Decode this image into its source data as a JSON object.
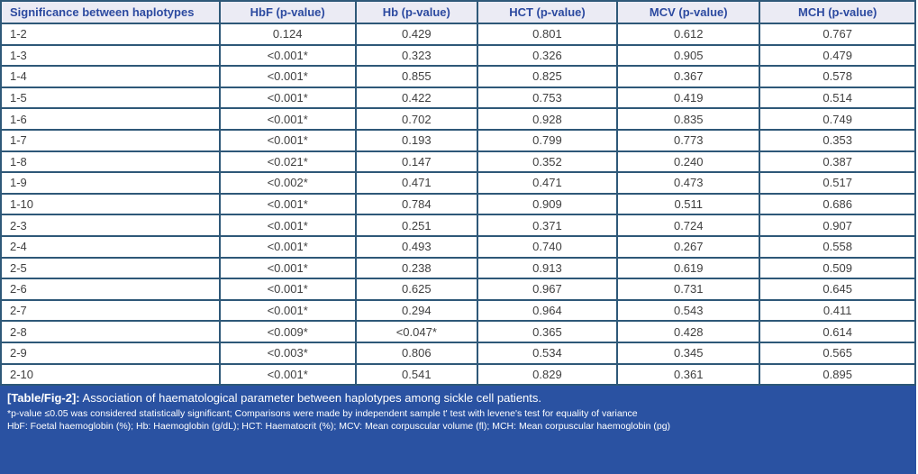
{
  "table": {
    "headers": [
      "Significance between haplotypes",
      "HbF (p-value)",
      "Hb (p-value)",
      "HCT (p-value)",
      "MCV (p-value)",
      "MCH (p-value)"
    ],
    "rows": [
      {
        "label": "1-2",
        "values": [
          "0.124",
          "0.429",
          "0.801",
          "0.612",
          "0.767"
        ]
      },
      {
        "label": "1-3",
        "values": [
          "<0.001*",
          "0.323",
          "0.326",
          "0.905",
          "0.479"
        ]
      },
      {
        "label": "1-4",
        "values": [
          "<0.001*",
          "0.855",
          "0.825",
          "0.367",
          "0.578"
        ]
      },
      {
        "label": "1-5",
        "values": [
          "<0.001*",
          "0.422",
          "0.753",
          "0.419",
          "0.514"
        ]
      },
      {
        "label": "1-6",
        "values": [
          "<0.001*",
          "0.702",
          "0.928",
          "0.835",
          "0.749"
        ]
      },
      {
        "label": "1-7",
        "values": [
          "<0.001*",
          "0.193",
          "0.799",
          "0.773",
          "0.353"
        ]
      },
      {
        "label": "1-8",
        "values": [
          "<0.021*",
          "0.147",
          "0.352",
          "0.240",
          "0.387"
        ]
      },
      {
        "label": "1-9",
        "values": [
          "<0.002*",
          "0.471",
          "0.471",
          "0.473",
          "0.517"
        ]
      },
      {
        "label": "1-10",
        "values": [
          "<0.001*",
          "0.784",
          "0.909",
          "0.511",
          "0.686"
        ]
      },
      {
        "label": "2-3",
        "values": [
          "<0.001*",
          "0.251",
          "0.371",
          "0.724",
          "0.907"
        ]
      },
      {
        "label": "2-4",
        "values": [
          "<0.001*",
          "0.493",
          "0.740",
          "0.267",
          "0.558"
        ]
      },
      {
        "label": "2-5",
        "values": [
          "<0.001*",
          "0.238",
          "0.913",
          "0.619",
          "0.509"
        ]
      },
      {
        "label": "2-6",
        "values": [
          "<0.001*",
          "0.625",
          "0.967",
          "0.731",
          "0.645"
        ]
      },
      {
        "label": "2-7",
        "values": [
          "<0.001*",
          "0.294",
          "0.964",
          "0.543",
          "0.411"
        ]
      },
      {
        "label": "2-8",
        "values": [
          "<0.009*",
          "<0.047*",
          "0.365",
          "0.428",
          "0.614"
        ]
      },
      {
        "label": "2-9",
        "values": [
          "<0.003*",
          "0.806",
          "0.534",
          "0.345",
          "0.565"
        ]
      },
      {
        "label": "2-10",
        "values": [
          "<0.001*",
          "0.541",
          "0.829",
          "0.361",
          "0.895"
        ]
      }
    ]
  },
  "footer": {
    "caption_label": "[Table/Fig-2]:",
    "caption_text": "Association of haematological parameter between haplotypes among sickle cell patients.",
    "note1": "*p-value ≤0.05 was considered statistically significant; Comparisons were made by independent sample t' test with levene's test for equality of variance",
    "note2": "HbF: Foetal haemoglobin (%); Hb: Haemoglobin (g/dL); HCT: Haematocrit (%); MCV: Mean corpuscular volume (fl); MCH: Mean corpuscular haemoglobin (pg)"
  },
  "colors": {
    "border": "#2e5878",
    "header_background": "#ebebf4",
    "header_text": "#2c4aa0",
    "body_text": "#404040",
    "footer_background": "#2a52a2",
    "footer_text": "#ffffff"
  },
  "chart_data": {
    "type": "table",
    "title": "[Table/Fig-2]: Association of haematological parameter between haplotypes among sickle cell patients.",
    "columns": [
      "Significance between haplotypes",
      "HbF (p-value)",
      "Hb (p-value)",
      "HCT (p-value)",
      "MCV (p-value)",
      "MCH (p-value)"
    ],
    "rows": [
      [
        "1-2",
        "0.124",
        "0.429",
        "0.801",
        "0.612",
        "0.767"
      ],
      [
        "1-3",
        "<0.001*",
        "0.323",
        "0.326",
        "0.905",
        "0.479"
      ],
      [
        "1-4",
        "<0.001*",
        "0.855",
        "0.825",
        "0.367",
        "0.578"
      ],
      [
        "1-5",
        "<0.001*",
        "0.422",
        "0.753",
        "0.419",
        "0.514"
      ],
      [
        "1-6",
        "<0.001*",
        "0.702",
        "0.928",
        "0.835",
        "0.749"
      ],
      [
        "1-7",
        "<0.001*",
        "0.193",
        "0.799",
        "0.773",
        "0.353"
      ],
      [
        "1-8",
        "<0.021*",
        "0.147",
        "0.352",
        "0.240",
        "0.387"
      ],
      [
        "1-9",
        "<0.002*",
        "0.471",
        "0.471",
        "0.473",
        "0.517"
      ],
      [
        "1-10",
        "<0.001*",
        "0.784",
        "0.909",
        "0.511",
        "0.686"
      ],
      [
        "2-3",
        "<0.001*",
        "0.251",
        "0.371",
        "0.724",
        "0.907"
      ],
      [
        "2-4",
        "<0.001*",
        "0.493",
        "0.740",
        "0.267",
        "0.558"
      ],
      [
        "2-5",
        "<0.001*",
        "0.238",
        "0.913",
        "0.619",
        "0.509"
      ],
      [
        "2-6",
        "<0.001*",
        "0.625",
        "0.967",
        "0.731",
        "0.645"
      ],
      [
        "2-7",
        "<0.001*",
        "0.294",
        "0.964",
        "0.543",
        "0.411"
      ],
      [
        "2-8",
        "<0.009*",
        "<0.047*",
        "0.365",
        "0.428",
        "0.614"
      ],
      [
        "2-9",
        "<0.003*",
        "0.806",
        "0.534",
        "0.345",
        "0.565"
      ],
      [
        "2-10",
        "<0.001*",
        "0.541",
        "0.829",
        "0.361",
        "0.895"
      ]
    ],
    "annotations": [
      "*p-value ≤0.05 was considered statistically significant; Comparisons were made by independent sample t' test with levene's test for equality of variance",
      "HbF: Foetal haemoglobin (%); Hb: Haemoglobin (g/dL); HCT: Haematocrit (%); MCV: Mean corpuscular volume (fl); MCH: Mean corpuscular haemoglobin (pg)"
    ]
  }
}
